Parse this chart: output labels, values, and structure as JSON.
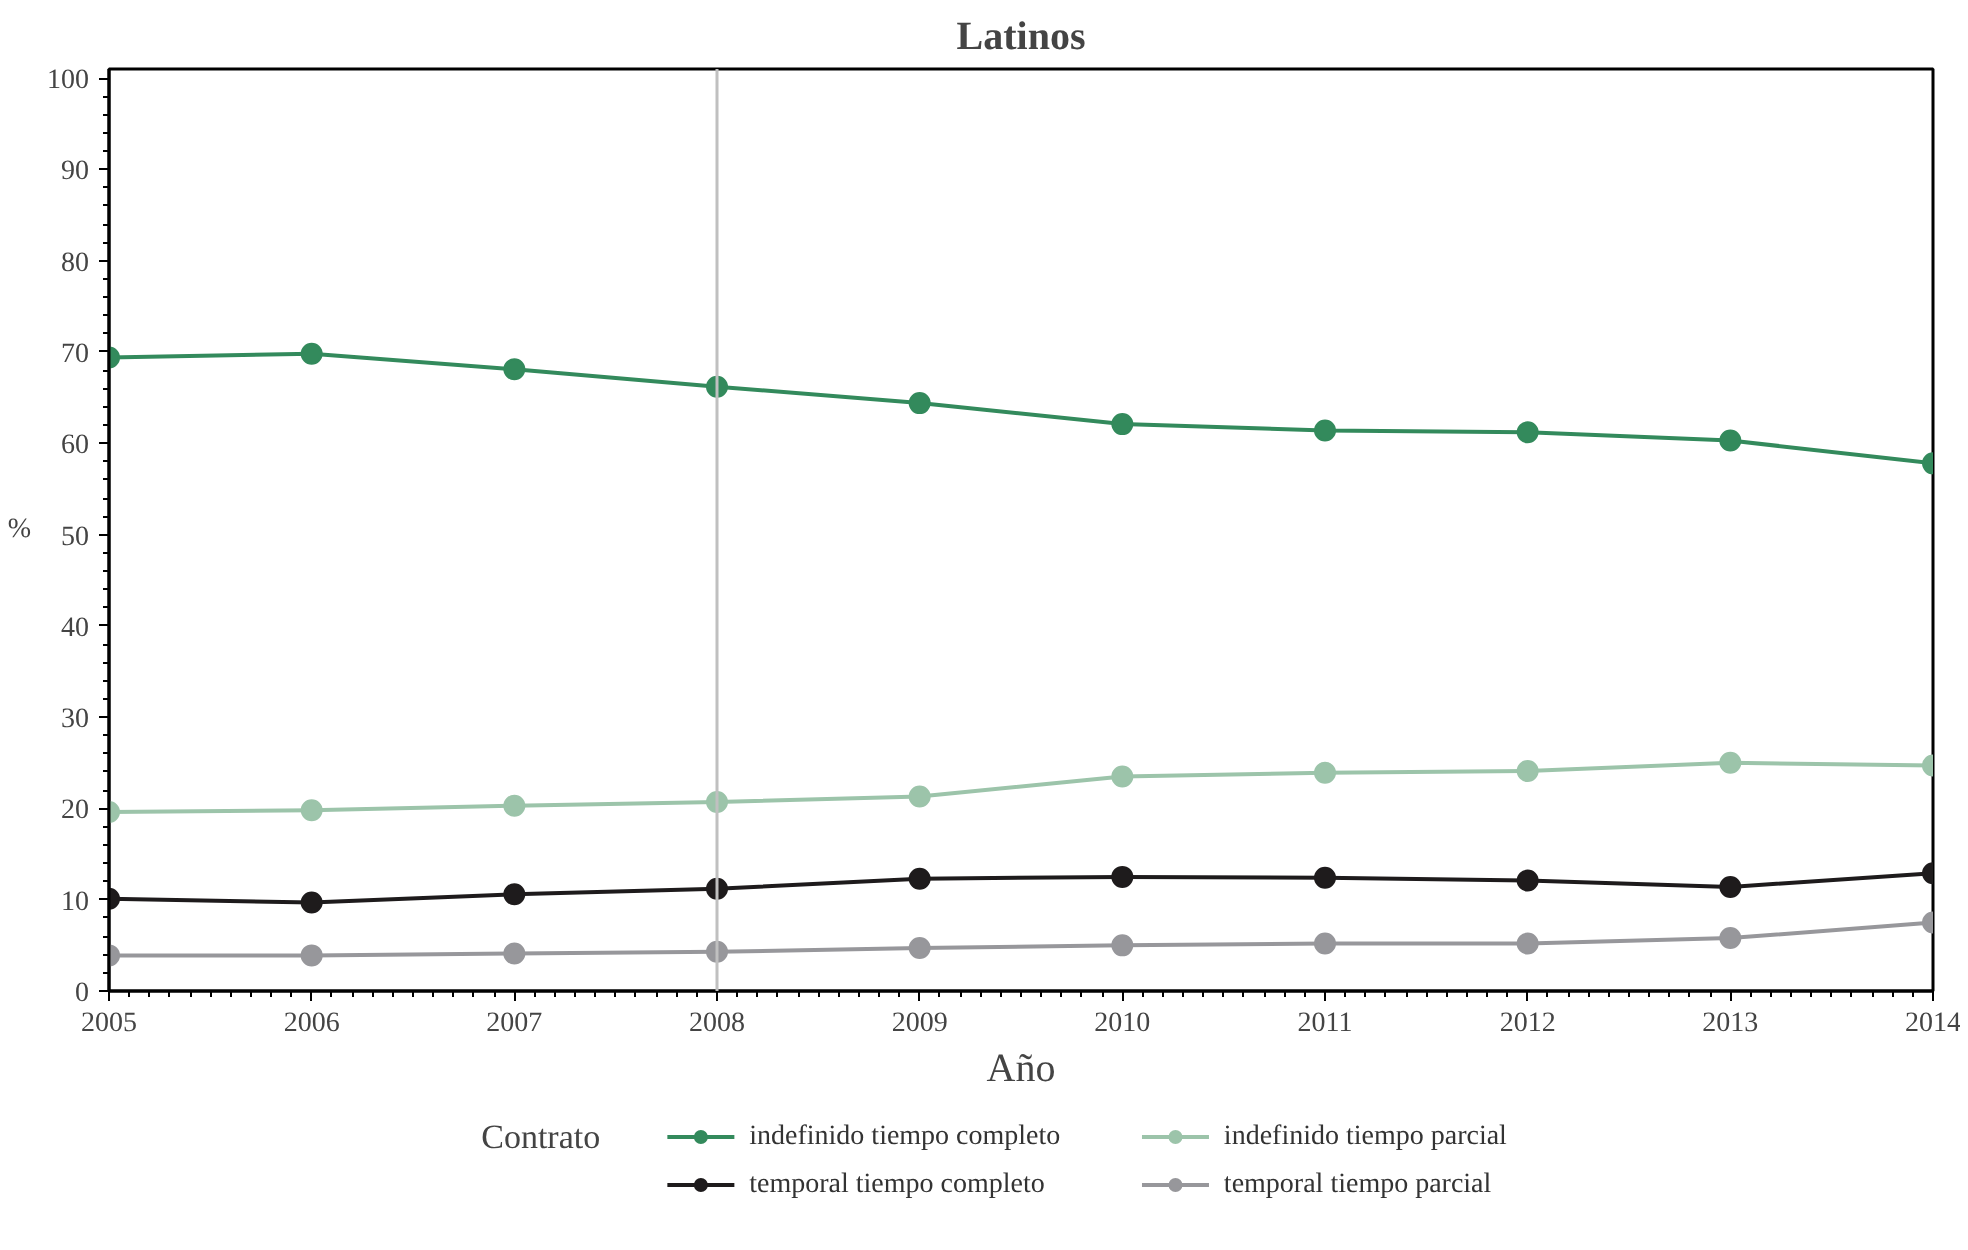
{
  "chart_data": {
    "type": "line",
    "title": "Latinos",
    "xlabel": "Año",
    "ylabel": "%",
    "legend_title": "Contrato",
    "x": [
      2005,
      2006,
      2007,
      2008,
      2009,
      2010,
      2011,
      2012,
      2013,
      2014
    ],
    "series": [
      {
        "name": "indefinido tiempo completo",
        "color": "#338a5c",
        "values": [
          69.4,
          69.8,
          68.1,
          66.2,
          64.4,
          62.1,
          61.4,
          61.2,
          60.3,
          57.8
        ]
      },
      {
        "name": "indefinido tiempo parcial",
        "color": "#9cc4aa",
        "values": [
          19.6,
          19.8,
          20.3,
          20.7,
          21.3,
          23.5,
          23.9,
          24.1,
          25.0,
          24.7
        ]
      },
      {
        "name": "temporal tiempo completo",
        "color": "#1e1b1c",
        "values": [
          10.1,
          9.7,
          10.6,
          11.2,
          12.3,
          12.5,
          12.4,
          12.1,
          11.4,
          12.9
        ]
      },
      {
        "name": "temporal tiempo parcial",
        "color": "#97979b",
        "values": [
          3.9,
          3.9,
          4.1,
          4.3,
          4.7,
          5.0,
          5.2,
          5.2,
          5.8,
          7.5
        ]
      }
    ],
    "xlim": [
      2005,
      2014
    ],
    "xticks": [
      2005,
      2006,
      2007,
      2008,
      2009,
      2010,
      2011,
      2012,
      2013,
      2014
    ],
    "ylim": [
      0,
      101
    ],
    "yticks": [
      0,
      10,
      20,
      30,
      40,
      50,
      60,
      70,
      80,
      90,
      100
    ],
    "ref_lines": [
      {
        "axis": "x",
        "value": 2008,
        "label": null,
        "color": "#c0c0c0"
      }
    ],
    "grid": false,
    "legend": "bottom",
    "marker": "circle",
    "line_style": "solid"
  }
}
